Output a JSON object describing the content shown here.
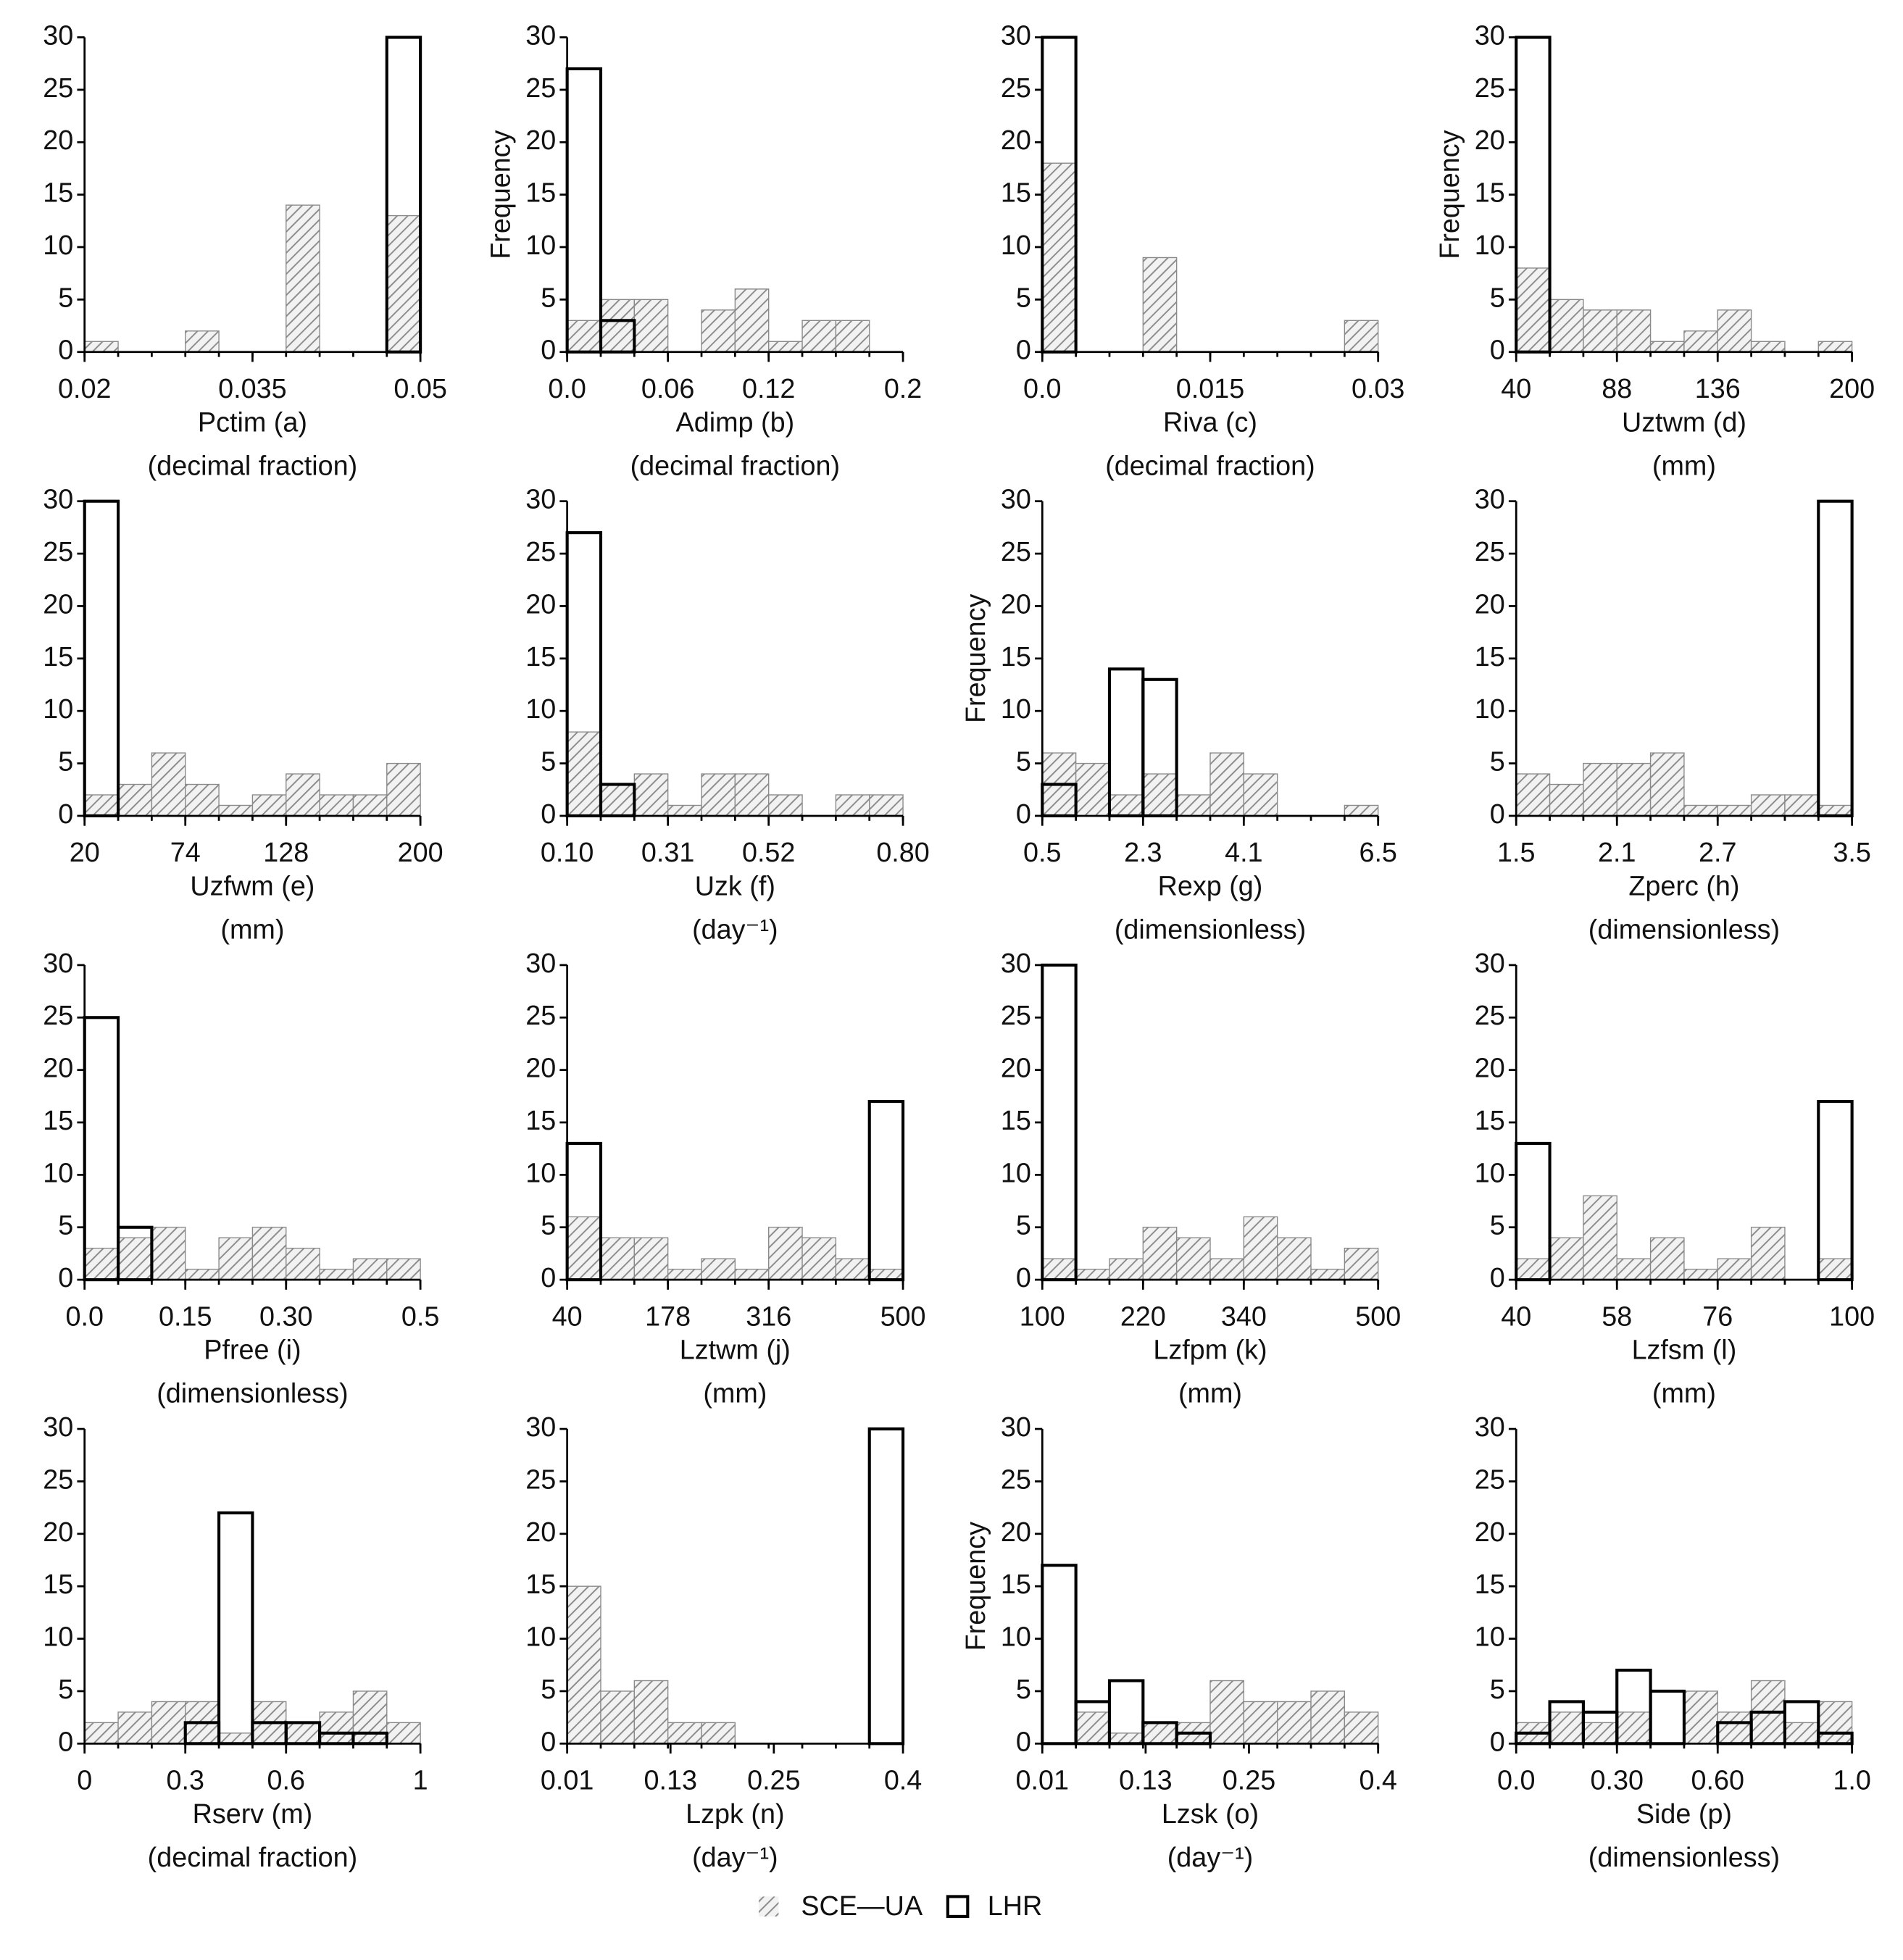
{
  "chart_data": [
    {
      "type": "histogram",
      "x_label": "Pctim (a)",
      "unit": "(decimal fraction)",
      "xlim": [
        0.02,
        0.05
      ],
      "xticks": [
        0.02,
        0.035,
        0.05
      ],
      "ylim": [
        0,
        30
      ],
      "yticks": [
        0,
        5,
        10,
        15,
        20,
        25,
        30
      ],
      "bins": [
        0.02,
        0.023,
        0.026,
        0.029,
        0.032,
        0.035,
        0.038,
        0.041,
        0.044,
        0.047,
        0.05
      ],
      "series": [
        {
          "name": "SCE—UA",
          "color": "#8a8a8a",
          "values": [
            1,
            0,
            0,
            2,
            0,
            0,
            14,
            0,
            0,
            13
          ]
        },
        {
          "name": "LHR",
          "color": "#000000",
          "values": [
            0,
            0,
            0,
            0,
            0,
            0,
            0,
            0,
            0,
            30
          ]
        }
      ]
    },
    {
      "type": "histogram",
      "x_label": "Adimp (b)",
      "unit": "(decimal fraction)",
      "y_label": "Frequency",
      "xlim": [
        0,
        0.2
      ],
      "xticks": [
        {
          "value": 0,
          "label": "0.0"
        },
        0.06,
        0.12,
        0.2
      ],
      "ylim": [
        0,
        30
      ],
      "yticks": [
        0,
        5,
        10,
        15,
        20,
        25,
        30
      ],
      "bins": [
        0,
        0.02,
        0.04,
        0.06,
        0.08,
        0.1,
        0.12,
        0.14,
        0.16,
        0.18,
        0.2
      ],
      "series": [
        {
          "name": "SCE—UA",
          "color": "#8a8a8a",
          "values": [
            3,
            5,
            5,
            0,
            4,
            6,
            1,
            3,
            3,
            0
          ]
        },
        {
          "name": "LHR",
          "color": "#000000",
          "values": [
            27,
            3,
            0,
            0,
            0,
            0,
            0,
            0,
            0,
            0
          ]
        }
      ]
    },
    {
      "type": "histogram",
      "x_label": "Riva (c)",
      "unit": "(decimal fraction)",
      "xlim": [
        0,
        0.03
      ],
      "xticks": [
        {
          "value": 0,
          "label": "0.0"
        },
        0.015,
        0.03
      ],
      "ylim": [
        0,
        30
      ],
      "yticks": [
        0,
        5,
        10,
        15,
        20,
        25,
        30
      ],
      "bins": [
        0,
        0.003,
        0.006,
        0.009,
        0.012,
        0.015,
        0.018,
        0.021,
        0.024,
        0.027,
        0.03
      ],
      "series": [
        {
          "name": "SCE—UA",
          "color": "#8a8a8a",
          "values": [
            18,
            0,
            0,
            9,
            0,
            0,
            0,
            0,
            0,
            3
          ]
        },
        {
          "name": "LHR",
          "color": "#000000",
          "values": [
            30,
            0,
            0,
            0,
            0,
            0,
            0,
            0,
            0,
            0
          ]
        }
      ]
    },
    {
      "type": "histogram",
      "x_label": "Uztwm (d)",
      "unit": "(mm)",
      "y_label": "Frequency",
      "xlim": [
        40,
        200
      ],
      "xticks": [
        40,
        88,
        136,
        200
      ],
      "ylim": [
        0,
        30
      ],
      "yticks": [
        0,
        5,
        10,
        15,
        20,
        25,
        30
      ],
      "bins": [
        40,
        56,
        72,
        88,
        104,
        120,
        136,
        152,
        168,
        184,
        200
      ],
      "series": [
        {
          "name": "SCE—UA",
          "color": "#8a8a8a",
          "values": [
            8,
            5,
            4,
            4,
            1,
            2,
            4,
            1,
            0,
            1
          ]
        },
        {
          "name": "LHR",
          "color": "#000000",
          "values": [
            30,
            0,
            0,
            0,
            0,
            0,
            0,
            0,
            0,
            0
          ]
        }
      ]
    },
    {
      "type": "histogram",
      "x_label": "Uzfwm (e)",
      "unit": "(mm)",
      "xlim": [
        20,
        200
      ],
      "xticks": [
        20,
        74,
        128,
        200
      ],
      "ylim": [
        0,
        30
      ],
      "yticks": [
        0,
        5,
        10,
        15,
        20,
        25,
        30
      ],
      "bins": [
        20,
        38,
        56,
        74,
        92,
        110,
        128,
        146,
        164,
        182,
        200
      ],
      "series": [
        {
          "name": "SCE—UA",
          "color": "#8a8a8a",
          "values": [
            2,
            3,
            6,
            3,
            1,
            2,
            4,
            2,
            2,
            5
          ]
        },
        {
          "name": "LHR",
          "color": "#000000",
          "values": [
            30,
            0,
            0,
            0,
            0,
            0,
            0,
            0,
            0,
            0
          ]
        }
      ]
    },
    {
      "type": "histogram",
      "x_label": "Uzk (f)",
      "unit": "(day⁻¹)",
      "xlim": [
        0.1,
        0.8
      ],
      "xticks": [
        {
          "value": 0.1,
          "label": "0.10"
        },
        0.31,
        0.52,
        {
          "value": 0.8,
          "label": "0.80"
        }
      ],
      "ylim": [
        0,
        30
      ],
      "yticks": [
        0,
        5,
        10,
        15,
        20,
        25,
        30
      ],
      "bins": [
        0.1,
        0.17,
        0.24,
        0.31,
        0.38,
        0.45,
        0.52,
        0.59,
        0.66,
        0.73,
        0.8
      ],
      "series": [
        {
          "name": "SCE—UA",
          "color": "#8a8a8a",
          "values": [
            8,
            3,
            4,
            1,
            4,
            4,
            2,
            0,
            2,
            2
          ]
        },
        {
          "name": "LHR",
          "color": "#000000",
          "values": [
            27,
            3,
            0,
            0,
            0,
            0,
            0,
            0,
            0,
            0
          ]
        }
      ]
    },
    {
      "type": "histogram",
      "x_label": "Rexp (g)",
      "unit": "(dimensionless)",
      "y_label": "Frequency",
      "xlim": [
        0.5,
        6.5
      ],
      "xticks": [
        0.5,
        2.3,
        4.1,
        6.5
      ],
      "ylim": [
        0,
        30
      ],
      "yticks": [
        0,
        5,
        10,
        15,
        20,
        25,
        30
      ],
      "bins": [
        0.5,
        1.1,
        1.7,
        2.3,
        2.9,
        3.5,
        4.1,
        4.7,
        5.3,
        5.9,
        6.5
      ],
      "series": [
        {
          "name": "SCE—UA",
          "color": "#8a8a8a",
          "values": [
            6,
            5,
            2,
            4,
            2,
            6,
            4,
            0,
            0,
            1
          ]
        },
        {
          "name": "LHR",
          "color": "#000000",
          "values": [
            3,
            0,
            14,
            13,
            0,
            0,
            0,
            0,
            0,
            0
          ]
        }
      ]
    },
    {
      "type": "histogram",
      "x_label": "Zperc (h)",
      "unit": "(dimensionless)",
      "xlim": [
        1.5,
        3.5
      ],
      "xticks": [
        1.5,
        2.1,
        2.7,
        3.5
      ],
      "ylim": [
        0,
        30
      ],
      "yticks": [
        0,
        5,
        10,
        15,
        20,
        25,
        30
      ],
      "bins": [
        1.5,
        1.7,
        1.9,
        2.1,
        2.3,
        2.5,
        2.7,
        2.9,
        3.1,
        3.3,
        3.5
      ],
      "series": [
        {
          "name": "SCE—UA",
          "color": "#8a8a8a",
          "values": [
            4,
            3,
            5,
            5,
            6,
            1,
            1,
            2,
            2,
            1
          ]
        },
        {
          "name": "LHR",
          "color": "#000000",
          "values": [
            0,
            0,
            0,
            0,
            0,
            0,
            0,
            0,
            0,
            30
          ]
        }
      ]
    },
    {
      "type": "histogram",
      "x_label": "Pfree (i)",
      "unit": "(dimensionless)",
      "xlim": [
        0,
        0.5
      ],
      "xticks": [
        {
          "value": 0,
          "label": "0.0"
        },
        0.15,
        {
          "value": 0.3,
          "label": "0.30"
        },
        0.5
      ],
      "ylim": [
        0,
        30
      ],
      "yticks": [
        0,
        5,
        10,
        15,
        20,
        25,
        30
      ],
      "bins": [
        0,
        0.05,
        0.1,
        0.15,
        0.2,
        0.25,
        0.3,
        0.35,
        0.4,
        0.45,
        0.5
      ],
      "series": [
        {
          "name": "SCE—UA",
          "color": "#8a8a8a",
          "values": [
            3,
            4,
            5,
            1,
            4,
            5,
            3,
            1,
            2,
            2
          ]
        },
        {
          "name": "LHR",
          "color": "#000000",
          "values": [
            25,
            5,
            0,
            0,
            0,
            0,
            0,
            0,
            0,
            0
          ]
        }
      ]
    },
    {
      "type": "histogram",
      "x_label": "Lztwm (j)",
      "unit": "(mm)",
      "xlim": [
        40,
        500
      ],
      "xticks": [
        40,
        178,
        316,
        500
      ],
      "ylim": [
        0,
        30
      ],
      "yticks": [
        0,
        5,
        10,
        15,
        20,
        25,
        30
      ],
      "bins": [
        40,
        86,
        132,
        178,
        224,
        270,
        316,
        362,
        408,
        454,
        500
      ],
      "series": [
        {
          "name": "SCE—UA",
          "color": "#8a8a8a",
          "values": [
            6,
            4,
            4,
            1,
            2,
            1,
            5,
            4,
            2,
            1
          ]
        },
        {
          "name": "LHR",
          "color": "#000000",
          "values": [
            13,
            0,
            0,
            0,
            0,
            0,
            0,
            0,
            0,
            17
          ]
        }
      ]
    },
    {
      "type": "histogram",
      "x_label": "Lzfpm (k)",
      "unit": "(mm)",
      "xlim": [
        100,
        500
      ],
      "xticks": [
        100,
        220,
        340,
        500
      ],
      "ylim": [
        0,
        30
      ],
      "yticks": [
        0,
        5,
        10,
        15,
        20,
        25,
        30
      ],
      "bins": [
        100,
        140,
        180,
        220,
        260,
        300,
        340,
        380,
        420,
        460,
        500
      ],
      "series": [
        {
          "name": "SCE—UA",
          "color": "#8a8a8a",
          "values": [
            2,
            1,
            2,
            5,
            4,
            2,
            6,
            4,
            1,
            3
          ]
        },
        {
          "name": "LHR",
          "color": "#000000",
          "values": [
            30,
            0,
            0,
            0,
            0,
            0,
            0,
            0,
            0,
            0
          ]
        }
      ]
    },
    {
      "type": "histogram",
      "x_label": "Lzfsm (l)",
      "unit": "(mm)",
      "xlim": [
        40,
        100
      ],
      "xticks": [
        40,
        58,
        76,
        100
      ],
      "ylim": [
        0,
        30
      ],
      "yticks": [
        0,
        5,
        10,
        15,
        20,
        25,
        30
      ],
      "bins": [
        40,
        46,
        52,
        58,
        64,
        70,
        76,
        82,
        88,
        94,
        100
      ],
      "series": [
        {
          "name": "SCE—UA",
          "color": "#8a8a8a",
          "values": [
            2,
            4,
            8,
            2,
            4,
            1,
            2,
            5,
            0,
            2
          ]
        },
        {
          "name": "LHR",
          "color": "#000000",
          "values": [
            13,
            0,
            0,
            0,
            0,
            0,
            0,
            0,
            0,
            17
          ]
        }
      ]
    },
    {
      "type": "histogram",
      "x_label": "Rserv (m)",
      "unit": "(decimal fraction)",
      "xlim": [
        0,
        1
      ],
      "xticks": [
        0,
        0.3,
        0.6,
        1
      ],
      "ylim": [
        0,
        30
      ],
      "yticks": [
        0,
        5,
        10,
        15,
        20,
        25,
        30
      ],
      "bins": [
        0,
        0.1,
        0.2,
        0.3,
        0.4,
        0.5,
        0.6,
        0.7,
        0.8,
        0.9,
        1
      ],
      "series": [
        {
          "name": "SCE—UA",
          "color": "#8a8a8a",
          "values": [
            2,
            3,
            4,
            4,
            1,
            4,
            2,
            3,
            5,
            2
          ]
        },
        {
          "name": "LHR",
          "color": "#000000",
          "values": [
            0,
            0,
            0,
            2,
            22,
            2,
            2,
            1,
            1,
            0
          ]
        }
      ]
    },
    {
      "type": "histogram",
      "x_label": "Lzpk (n)",
      "unit": "(day⁻¹)",
      "xlim": [
        0.01,
        0.4
      ],
      "xticks": [
        0.01,
        0.13,
        0.25,
        0.4
      ],
      "ylim": [
        0,
        30
      ],
      "yticks": [
        0,
        5,
        10,
        15,
        20,
        25,
        30
      ],
      "bins": [
        0.01,
        0.049,
        0.088,
        0.127,
        0.166,
        0.205,
        0.244,
        0.283,
        0.322,
        0.361,
        0.4
      ],
      "series": [
        {
          "name": "SCE—UA",
          "color": "#8a8a8a",
          "values": [
            15,
            5,
            6,
            2,
            2,
            0,
            0,
            0,
            0,
            0
          ]
        },
        {
          "name": "LHR",
          "color": "#000000",
          "values": [
            0,
            0,
            0,
            0,
            0,
            0,
            0,
            0,
            0,
            30
          ]
        }
      ]
    },
    {
      "type": "histogram",
      "x_label": "Lzsk (o)",
      "unit": "(day⁻¹)",
      "y_label": "Frequency",
      "xlim": [
        0.01,
        0.4
      ],
      "xticks": [
        0.01,
        0.13,
        0.25,
        0.4
      ],
      "ylim": [
        0,
        30
      ],
      "yticks": [
        0,
        5,
        10,
        15,
        20,
        25,
        30
      ],
      "bins": [
        0.01,
        0.049,
        0.088,
        0.127,
        0.166,
        0.205,
        0.244,
        0.283,
        0.322,
        0.361,
        0.4
      ],
      "series": [
        {
          "name": "SCE—UA",
          "color": "#8a8a8a",
          "values": [
            0,
            3,
            1,
            2,
            2,
            6,
            4,
            4,
            5,
            3
          ]
        },
        {
          "name": "LHR",
          "color": "#000000",
          "values": [
            17,
            4,
            6,
            2,
            1,
            0,
            0,
            0,
            0,
            0
          ]
        }
      ]
    },
    {
      "type": "histogram",
      "x_label": "Side (p)",
      "unit": "(dimensionless)",
      "xlim": [
        0,
        1
      ],
      "xticks": [
        {
          "value": 0,
          "label": "0.0"
        },
        {
          "value": 0.3,
          "label": "0.30"
        },
        {
          "value": 0.6,
          "label": "0.60"
        },
        {
          "value": 1,
          "label": "1.0"
        }
      ],
      "ylim": [
        0,
        30
      ],
      "yticks": [
        0,
        5,
        10,
        15,
        20,
        25,
        30
      ],
      "bins": [
        0,
        0.1,
        0.2,
        0.3,
        0.4,
        0.5,
        0.6,
        0.7,
        0.8,
        0.9,
        1
      ],
      "series": [
        {
          "name": "SCE—UA",
          "color": "#8a8a8a",
          "values": [
            2,
            3,
            2,
            3,
            0,
            5,
            3,
            6,
            2,
            4
          ]
        },
        {
          "name": "LHR",
          "color": "#000000",
          "values": [
            1,
            4,
            3,
            7,
            5,
            0,
            2,
            3,
            4,
            1
          ]
        }
      ]
    }
  ]
}
